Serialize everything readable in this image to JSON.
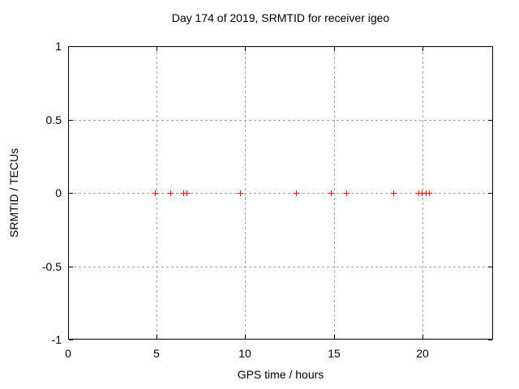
{
  "chart_data": {
    "type": "scatter",
    "title": "Day 174 of 2019, SRMTID for receiver igeo",
    "xlabel": "GPS time / hours",
    "ylabel": "SRMTID / TECUs",
    "xlim": [
      0,
      24
    ],
    "ylim": [
      -1,
      1
    ],
    "xticks": [
      0,
      5,
      10,
      15,
      20
    ],
    "xtick_labels": [
      "0",
      "5",
      "10",
      "15",
      "20"
    ],
    "yticks": [
      1,
      0.5,
      0,
      -0.5,
      -1
    ],
    "ytick_labels": [
      "1",
      "0.5",
      "0",
      "-0.5",
      "-1"
    ],
    "grid": true,
    "legend": "none",
    "marker": "plus",
    "marker_color": "#ff0000",
    "grid_color": "#a0a0a0",
    "x": [
      4.92,
      5.79,
      6.49,
      6.67,
      9.69,
      12.85,
      14.82,
      15.73,
      18.36,
      19.8,
      19.99,
      20.21,
      20.4
    ],
    "y": [
      0,
      0,
      0,
      0,
      0,
      0,
      0,
      0,
      0,
      0,
      0,
      0,
      0
    ]
  }
}
